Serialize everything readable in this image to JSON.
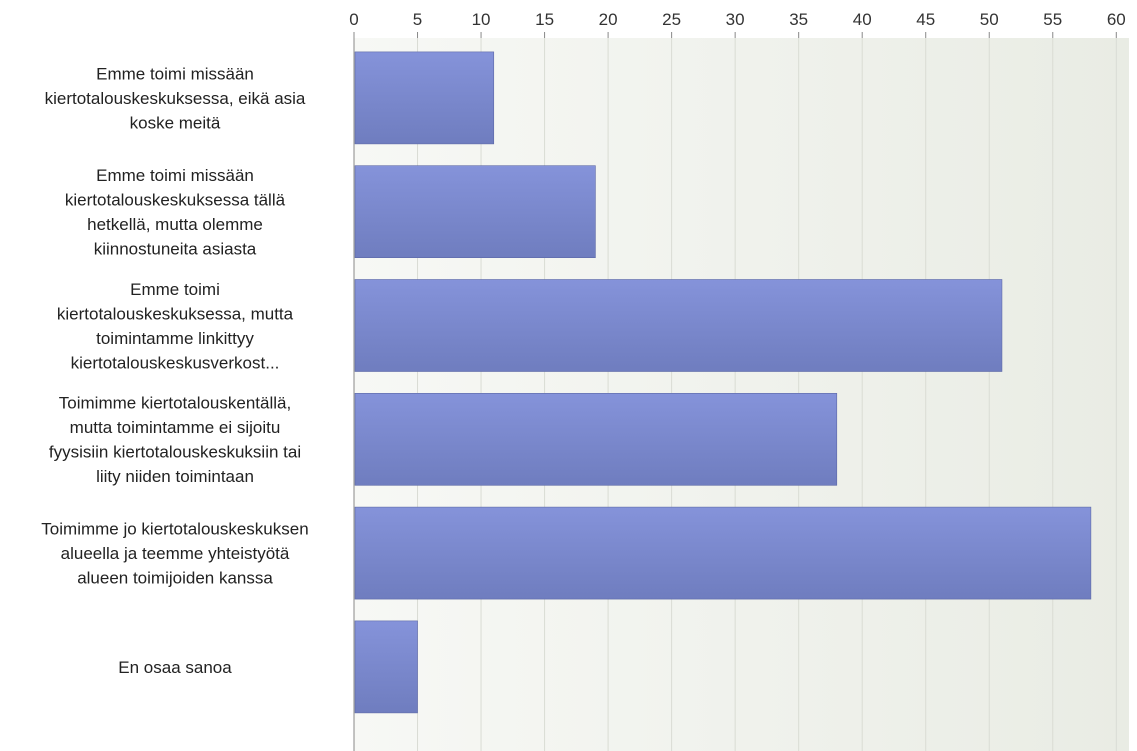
{
  "chart_data": {
    "type": "bar",
    "orientation": "horizontal",
    "categories": [
      [
        "Emme toimi missään",
        "kiertotalouskeskuksessa, eikä asia",
        "koske meitä"
      ],
      [
        "Emme toimi missään",
        "kiertotalouskeskuksessa tällä",
        "hetkellä, mutta olemme",
        "kiinnostuneita asiasta"
      ],
      [
        "Emme toimi",
        "kiertotalouskeskuksessa, mutta",
        "toimintamme linkittyy",
        "kiertotalouskeskusverkost..."
      ],
      [
        "Toimimme kiertotalouskentällä,",
        "mutta toimintamme ei sijoitu",
        "fyysisiin kiertotalouskeskuksiin tai",
        "liity niiden toimintaan"
      ],
      [
        "Toimimme jo kiertotalouskeskuksen",
        "alueella ja teemme yhteistyötä",
        "alueen toimijoiden kanssa"
      ],
      [
        "En osaa sanoa"
      ]
    ],
    "values": [
      11,
      19,
      51,
      38,
      58,
      5
    ],
    "xlim": [
      0,
      61
    ],
    "ticks": [
      0,
      5,
      10,
      15,
      20,
      25,
      30,
      35,
      40,
      45,
      50,
      55,
      60
    ],
    "axis_position": "top",
    "grid": true,
    "legend": "none",
    "colors": {
      "bar_top": "#8593da",
      "bar_bottom": "#6f7dbf",
      "bar_edge": "#5c68a6",
      "plot_bg_left": "#f7f8f5",
      "plot_bg_right": "#e9ece4",
      "grid": "#d9dcd4",
      "axis": "#888888"
    }
  }
}
